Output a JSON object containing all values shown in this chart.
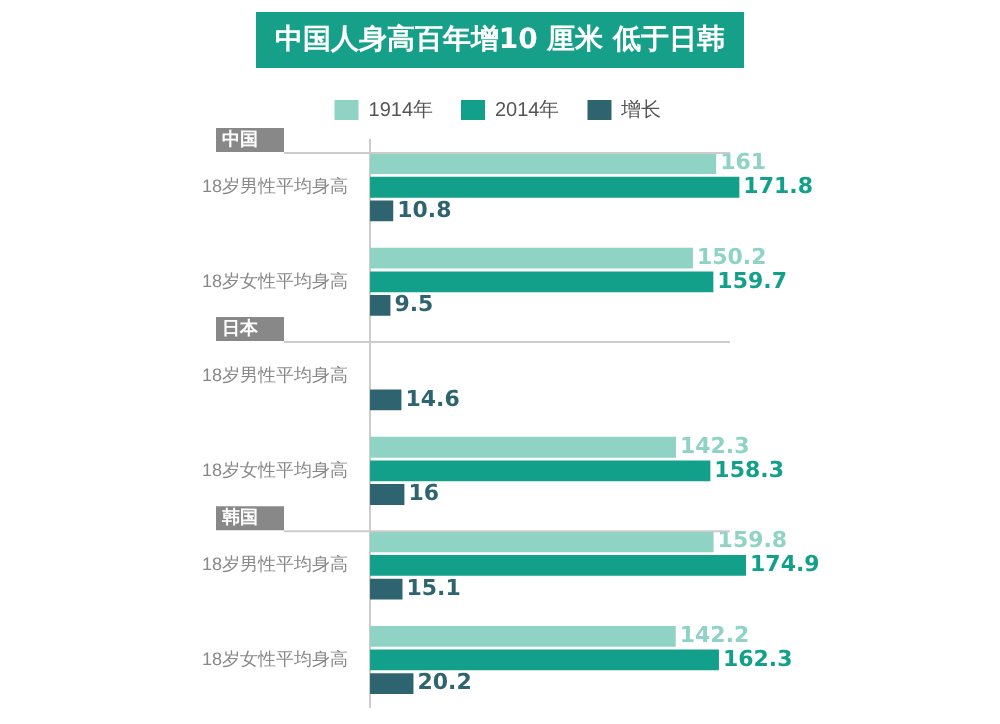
{
  "chart_data": {
    "type": "bar",
    "orientation": "horizontal",
    "title": "中国人身高百年增10 厘米 低于日韩",
    "categories": [
      "18岁男性平均身高",
      "18岁女性平均身高",
      "18岁男性平均身高",
      "18岁女性平均身高",
      "18岁男性平均身高",
      "18岁女性平均身高"
    ],
    "series": [
      {
        "name": "1914年",
        "color": "#8fd3c4",
        "values": [
          161,
          150.2,
          null,
          142.3,
          159.8,
          142.2
        ]
      },
      {
        "name": "2014年",
        "color": "#13a08b",
        "values": [
          171.8,
          159.7,
          null,
          158.3,
          174.9,
          162.3
        ]
      },
      {
        "name": "增长",
        "color": "#2e6470",
        "values": [
          10.8,
          9.5,
          14.6,
          16.0,
          15.1,
          20.2
        ]
      }
    ],
    "annotations": [
      "中国",
      "日本",
      "韩国"
    ],
    "data_labels": true,
    "legend": "top",
    "grid": false
  }
}
